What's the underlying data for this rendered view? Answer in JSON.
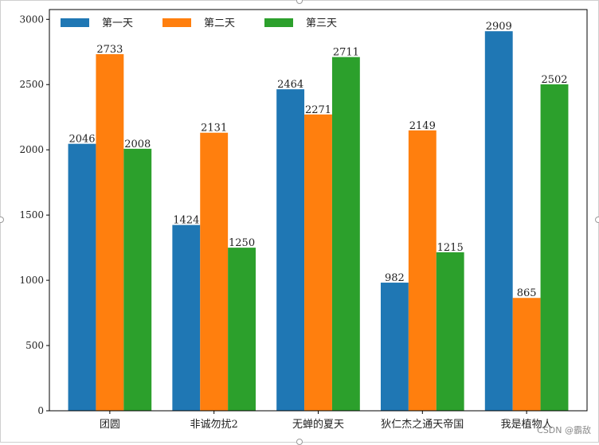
{
  "chart_data": {
    "type": "bar",
    "title": "",
    "xlabel": "",
    "ylabel": "",
    "categories": [
      "团圆",
      "非诚勿扰2",
      "无蝉的夏天",
      "狄仁杰之通天帝国",
      "我是植物人"
    ],
    "series": [
      {
        "name": "第一天",
        "color": "#1f77b4",
        "values": [
          2046,
          1424,
          2464,
          982,
          2909
        ]
      },
      {
        "name": "第二天",
        "color": "#ff7f0e",
        "values": [
          2733,
          2131,
          2271,
          2149,
          865
        ]
      },
      {
        "name": "第三天",
        "color": "#2ca02c",
        "values": [
          2008,
          1250,
          2711,
          1215,
          2502
        ]
      }
    ],
    "ylim": [
      0,
      3075
    ],
    "yticks": [
      0,
      500,
      1000,
      1500,
      2000,
      2500,
      3000
    ],
    "legend": "top-left",
    "grid": false
  },
  "watermark": "CSDN @霸敌"
}
